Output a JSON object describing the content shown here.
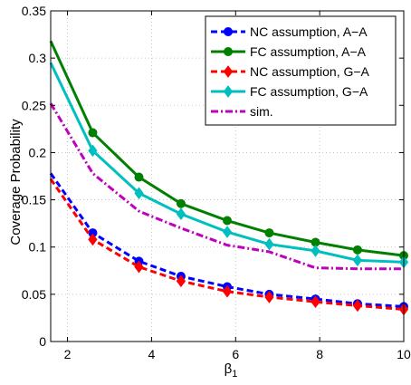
{
  "chart_data": {
    "type": "line",
    "xlabel": "β",
    "xlabel_subscript": "1",
    "ylabel": "Coverage Probability",
    "xlim": [
      1.6,
      10
    ],
    "ylim": [
      0,
      0.35
    ],
    "xticks": [
      2,
      4,
      6,
      8,
      10
    ],
    "yticks": [
      0,
      0.05,
      0.1,
      0.15,
      0.2,
      0.25,
      0.3,
      0.35
    ],
    "xtick_labels": [
      "2",
      "4",
      "6",
      "8",
      "10"
    ],
    "ytick_labels": [
      "0",
      "0.05",
      "0.1",
      "0.15",
      "0.2",
      "0.25",
      "0.3",
      "0.35"
    ],
    "grid": true,
    "legend_position": "top-right",
    "series": [
      {
        "name": "NC assumption, A−A",
        "color": "#0000ff",
        "line": "dashed",
        "marker": "circle",
        "x": [
          1.6,
          2.6,
          3.7,
          4.7,
          5.8,
          6.8,
          7.9,
          8.9,
          10
        ],
        "y": [
          0.178,
          0.115,
          0.085,
          0.069,
          0.058,
          0.05,
          0.045,
          0.04,
          0.037
        ]
      },
      {
        "name": "FC assumption, A−A",
        "color": "#008000",
        "line": "solid",
        "marker": "circle",
        "x": [
          1.6,
          2.6,
          3.7,
          4.7,
          5.8,
          6.8,
          7.9,
          8.9,
          10
        ],
        "y": [
          0.318,
          0.221,
          0.174,
          0.146,
          0.128,
          0.115,
          0.105,
          0.097,
          0.091
        ]
      },
      {
        "name": "NC assumption, G−A",
        "color": "#ff0000",
        "line": "dashed",
        "marker": "diamond",
        "x": [
          1.6,
          2.6,
          3.7,
          4.7,
          5.8,
          6.8,
          7.9,
          8.9,
          10
        ],
        "y": [
          0.172,
          0.108,
          0.079,
          0.064,
          0.053,
          0.047,
          0.042,
          0.038,
          0.034
        ]
      },
      {
        "name": "FC assumption, G−A",
        "color": "#00bfbf",
        "line": "solid",
        "marker": "diamond",
        "x": [
          1.6,
          2.6,
          3.7,
          4.7,
          5.8,
          6.8,
          7.9,
          8.9,
          10
        ],
        "y": [
          0.295,
          0.202,
          0.157,
          0.135,
          0.116,
          0.103,
          0.096,
          0.086,
          0.084
        ]
      },
      {
        "name": "sim.",
        "color": "#bf00bf",
        "line": "dashdot",
        "marker": "none",
        "x": [
          1.6,
          2.6,
          3.7,
          4.7,
          5.8,
          6.8,
          7.9,
          8.9,
          10
        ],
        "y": [
          0.252,
          0.178,
          0.138,
          0.12,
          0.102,
          0.095,
          0.078,
          0.077,
          0.077
        ]
      }
    ]
  }
}
